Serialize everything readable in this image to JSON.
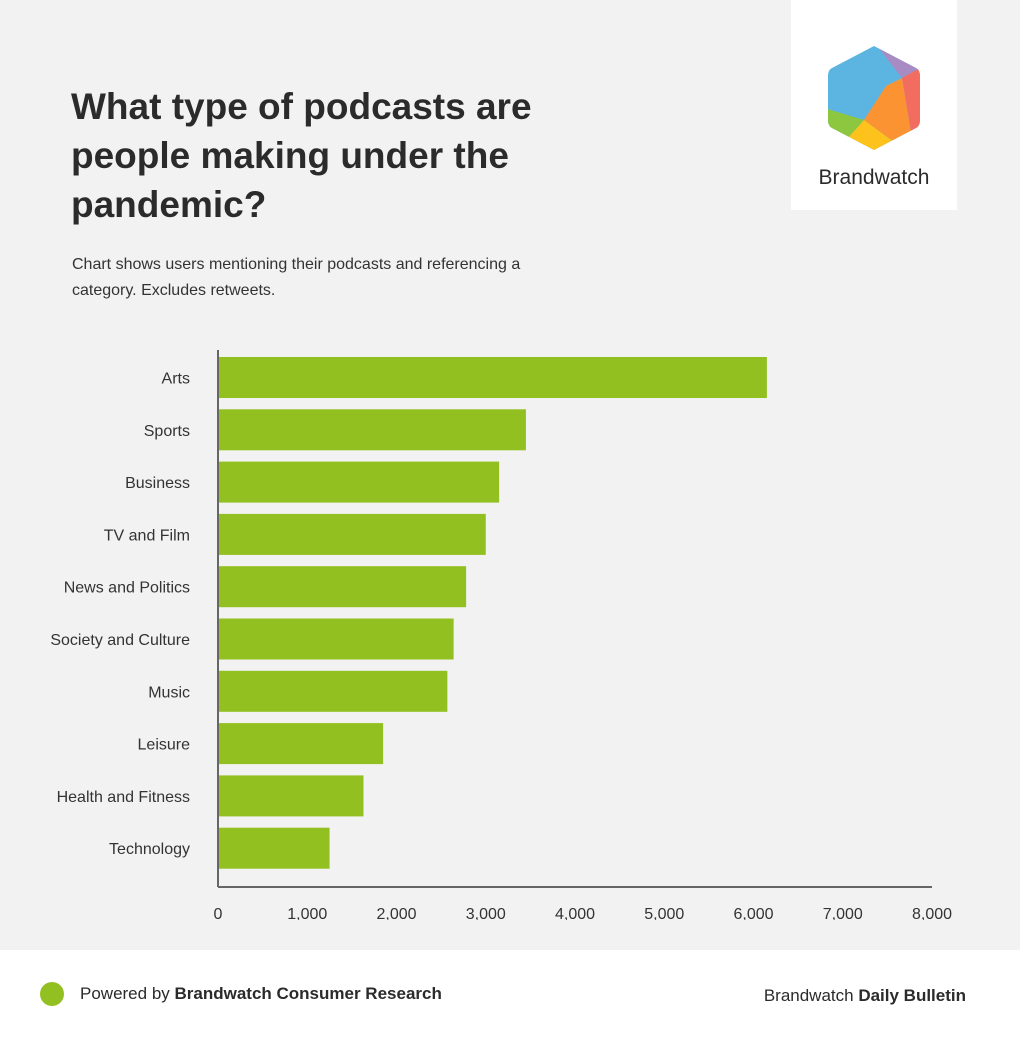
{
  "header": {
    "title": "What type of podcasts are people making under the pandemic?",
    "subtitle": "Chart shows users mentioning their podcasts and referencing a category. Excludes retweets."
  },
  "logo": {
    "name": "Brandwatch",
    "icon": "brandwatch-hexagon-icon"
  },
  "colors": {
    "bar": "#92c020",
    "axis": "#666666",
    "text": "#333333",
    "logo_blue": "#5bb5e0",
    "logo_purple": "#a98bc4",
    "logo_red": "#f36c60",
    "logo_orange": "#fb9333",
    "logo_yellow": "#fdc31c",
    "logo_green": "#8dc63f"
  },
  "chart_data": {
    "type": "bar",
    "orientation": "horizontal",
    "categories": [
      "Arts",
      "Sports",
      "Business",
      "TV and Film",
      "News and Politics",
      "Society and Culture",
      "Music",
      "Leisure",
      "Health and Fitness",
      "Technology"
    ],
    "values": [
      6150,
      3450,
      3150,
      3000,
      2780,
      2640,
      2570,
      1850,
      1630,
      1250
    ],
    "xlim": [
      0,
      8000
    ],
    "xticks": [
      "0",
      "1,000",
      "2,000",
      "3,000",
      "4,000",
      "5,000",
      "6,000",
      "7,000",
      "8,000"
    ],
    "xtick_values": [
      0,
      1000,
      2000,
      3000,
      4000,
      5000,
      6000,
      7000,
      8000
    ],
    "grid": false,
    "xlabel": "",
    "ylabel": ""
  },
  "footer": {
    "powered_prefix": "Powered by ",
    "powered_brand": "Brandwatch Consumer Research",
    "right_prefix": "Brandwatch ",
    "right_bold": "Daily Bulletin",
    "dot_color": "#92c020"
  }
}
